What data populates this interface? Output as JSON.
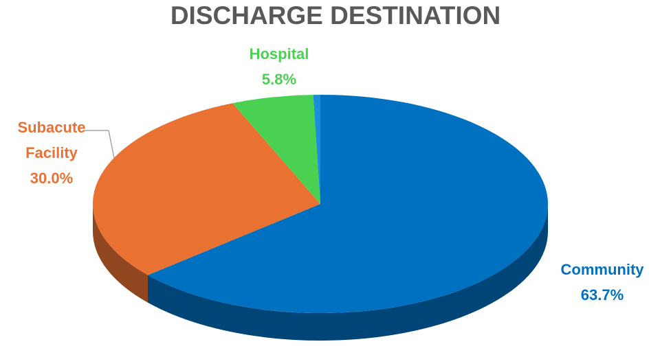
{
  "chart_data": {
    "type": "pie",
    "title": "DISCHARGE DESTINATION",
    "categories": [
      "Community",
      "Subacute Facility",
      "Hospital",
      null
    ],
    "values": [
      63.7,
      30.0,
      5.8,
      0.5
    ],
    "value_labels": [
      "63.7%",
      "30.0%",
      "5.8%",
      null
    ],
    "colors": [
      "#0070c0",
      "#e97132",
      "#4ad152",
      "#1a8fd8"
    ]
  }
}
